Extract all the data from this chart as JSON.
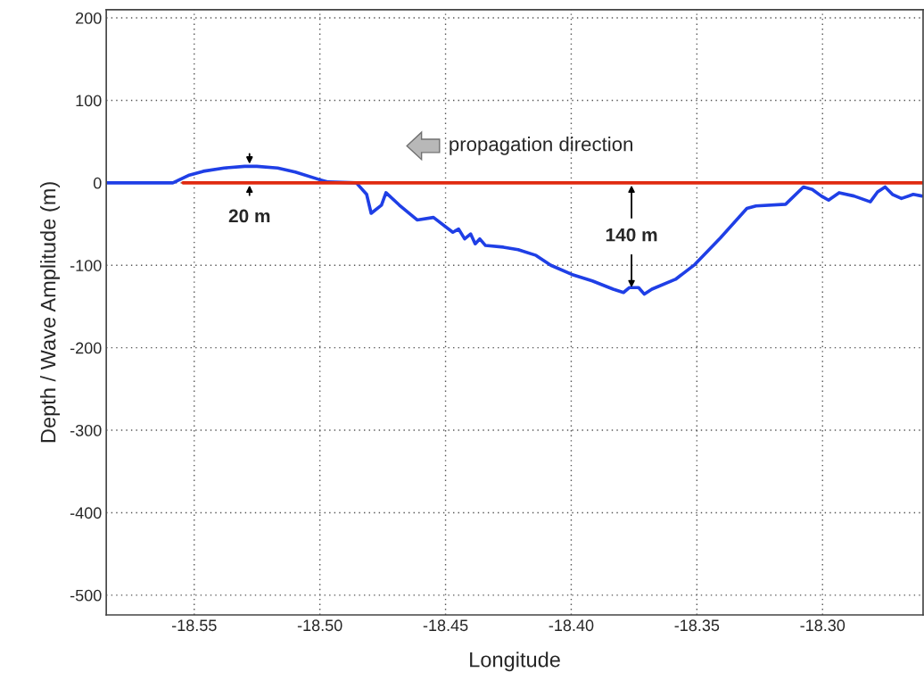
{
  "chart_data": {
    "type": "line",
    "xlabel": "Longitude",
    "ylabel": "Depth / Wave Amplitude (m)",
    "series": [
      {
        "color": "#1f3fe6",
        "x": [
          -18.585,
          -18.5585,
          -18.557,
          -18.5523,
          -18.5464,
          -18.5381,
          -18.5299,
          -18.5251,
          -18.5168,
          -18.5098,
          -18.5003,
          -18.4967,
          -18.4855,
          -18.4814,
          -18.4796,
          -18.4755,
          -18.4737,
          -18.4684,
          -18.4613,
          -18.4548,
          -18.4471,
          -18.4448,
          -18.4424,
          -18.44,
          -18.4382,
          -18.4364,
          -18.4341,
          -18.427,
          -18.4211,
          -18.414,
          -18.4081,
          -18.3998,
          -18.3916,
          -18.3833,
          -18.3792,
          -18.3768,
          -18.3762,
          -18.3732,
          -18.3709,
          -18.3679,
          -18.3585,
          -18.3508,
          -18.3407,
          -18.3301,
          -18.3265,
          -18.3147,
          -18.3076,
          -18.3041,
          -18.3005,
          -18.2976,
          -18.2934,
          -18.2875,
          -18.281,
          -18.2781,
          -18.2751,
          -18.2722,
          -18.2686,
          -18.2639,
          -18.2605
        ],
        "values": [
          0,
          0,
          2,
          9,
          14,
          18,
          20,
          20,
          18,
          13,
          4,
          1,
          0,
          -14,
          -37,
          -27,
          -12,
          -27,
          -45,
          -42,
          -60,
          -56,
          -68,
          -62,
          -74,
          -68,
          -76,
          -78,
          -81,
          -88,
          -100,
          -111,
          -119,
          -129,
          -133,
          -127,
          -127,
          -127,
          -135,
          -129,
          -117,
          -99,
          -67,
          -31,
          -28,
          -26,
          -5,
          -8,
          -16,
          -21,
          -12,
          -16,
          -23,
          -11,
          -5,
          -14,
          -19,
          -14,
          -16
        ]
      },
      {
        "color": "#e02a10",
        "x": [
          -18.5545,
          -18.26
        ],
        "values": [
          0,
          0
        ]
      }
    ],
    "xlim": [
      -18.585,
      -18.26
    ],
    "ylim": [
      -524,
      210
    ],
    "xticks": [
      {
        "value": -18.55,
        "label": "-18.55"
      },
      {
        "value": -18.5,
        "label": "-18.50"
      },
      {
        "value": -18.45,
        "label": "-18.45"
      },
      {
        "value": -18.4,
        "label": "-18.40"
      },
      {
        "value": -18.35,
        "label": "-18.35"
      },
      {
        "value": -18.3,
        "label": "-18.30"
      }
    ],
    "yticks": [
      -500,
      -400,
      -300,
      -200,
      -100,
      0,
      100,
      200
    ],
    "grid": true,
    "legend": false,
    "annotations": [
      {
        "text": "20 m",
        "x": -18.528,
        "y": 20
      },
      {
        "text": "140 m",
        "x": -18.376,
        "y": -130
      },
      "propagation direction"
    ]
  }
}
